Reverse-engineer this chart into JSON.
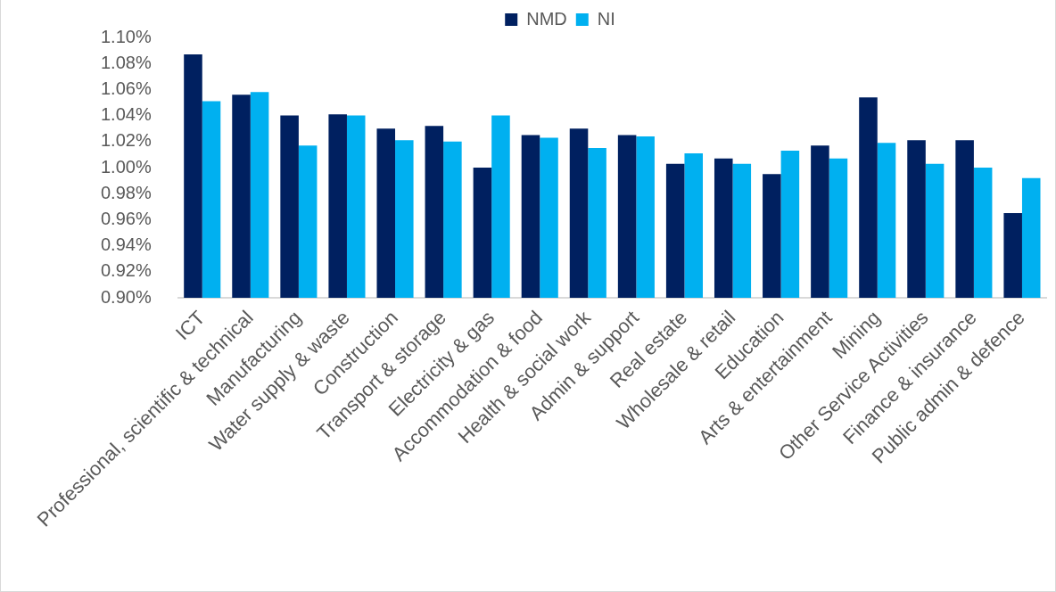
{
  "chart_data": {
    "type": "bar",
    "categories": [
      "ICT",
      "Professional, scientific & technical",
      "Manufacturing",
      "Water supply & waste",
      "Construction",
      "Transport & storage",
      "Electricity & gas",
      "Accommodation & food",
      "Health & social work",
      "Admin & support",
      "Real estate",
      "Wholesale & retail",
      "Education",
      "Arts & entertainment",
      "Mining",
      "Other Service Activities",
      "Finance & insurance",
      "Public admin & defence"
    ],
    "series": [
      {
        "name": "NMD",
        "color": "#002060",
        "values": [
          1.087,
          1.056,
          1.04,
          1.041,
          1.03,
          1.032,
          1.0,
          1.025,
          1.03,
          1.025,
          1.003,
          1.007,
          0.995,
          1.017,
          1.054,
          1.021,
          1.021,
          0.965
        ]
      },
      {
        "name": "NI",
        "color": "#00b0f0",
        "values": [
          1.051,
          1.058,
          1.017,
          1.04,
          1.021,
          1.02,
          1.04,
          1.023,
          1.015,
          1.024,
          1.011,
          1.003,
          1.013,
          1.007,
          1.019,
          1.003,
          1.0,
          0.992
        ]
      }
    ],
    "ylim": [
      0.9,
      1.1
    ],
    "yticks": [
      {
        "value": 0.9,
        "label": "0.90%"
      },
      {
        "value": 0.92,
        "label": "0.92%"
      },
      {
        "value": 0.94,
        "label": "0.94%"
      },
      {
        "value": 0.96,
        "label": "0.96%"
      },
      {
        "value": 0.98,
        "label": "0.98%"
      },
      {
        "value": 1.0,
        "label": "1.00%"
      },
      {
        "value": 1.02,
        "label": "1.02%"
      },
      {
        "value": 1.04,
        "label": "1.04%"
      },
      {
        "value": 1.06,
        "label": "1.06%"
      },
      {
        "value": 1.08,
        "label": "1.08%"
      },
      {
        "value": 1.1,
        "label": "1.10%"
      }
    ],
    "legend": "top"
  }
}
